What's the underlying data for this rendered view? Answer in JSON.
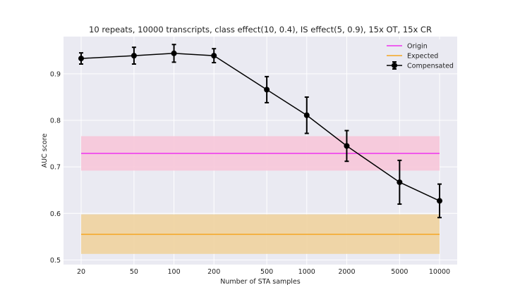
{
  "chart_data": {
    "type": "line",
    "title": "10 repeats, 10000 transcripts, class effect(10, 0.4), IS effect(5, 0.9), 15x OT, 15x CR",
    "xlabel": "Number of STA samples",
    "ylabel": "AUC score",
    "x_scale": "log",
    "x": [
      20,
      50,
      100,
      200,
      500,
      1000,
      2000,
      5000,
      10000
    ],
    "x_tick_labels": [
      "20",
      "50",
      "100",
      "200",
      "500",
      "1000",
      "2000",
      "5000",
      "10000"
    ],
    "ylim": [
      0.49,
      0.98
    ],
    "y_ticks": [
      0.5,
      0.6,
      0.7,
      0.8,
      0.9
    ],
    "y_tick_labels": [
      "0.5",
      "0.6",
      "0.7",
      "0.8",
      "0.9"
    ],
    "grid": true,
    "legend_position": "top-right",
    "series": [
      {
        "name": "Origin",
        "color": "#ee33ee",
        "band_color": "#f7c6d9",
        "value": 0.729,
        "band": [
          0.692,
          0.766
        ]
      },
      {
        "name": "Expected",
        "color": "#f5a623",
        "band_color": "#f0d39e",
        "value": 0.555,
        "band": [
          0.513,
          0.598
        ]
      },
      {
        "name": "Compensated",
        "color": "#000000",
        "values": [
          0.933,
          0.939,
          0.944,
          0.939,
          0.866,
          0.811,
          0.745,
          0.667,
          0.627
        ],
        "errors": [
          0.012,
          0.018,
          0.019,
          0.015,
          0.028,
          0.039,
          0.033,
          0.047,
          0.036
        ]
      }
    ]
  }
}
